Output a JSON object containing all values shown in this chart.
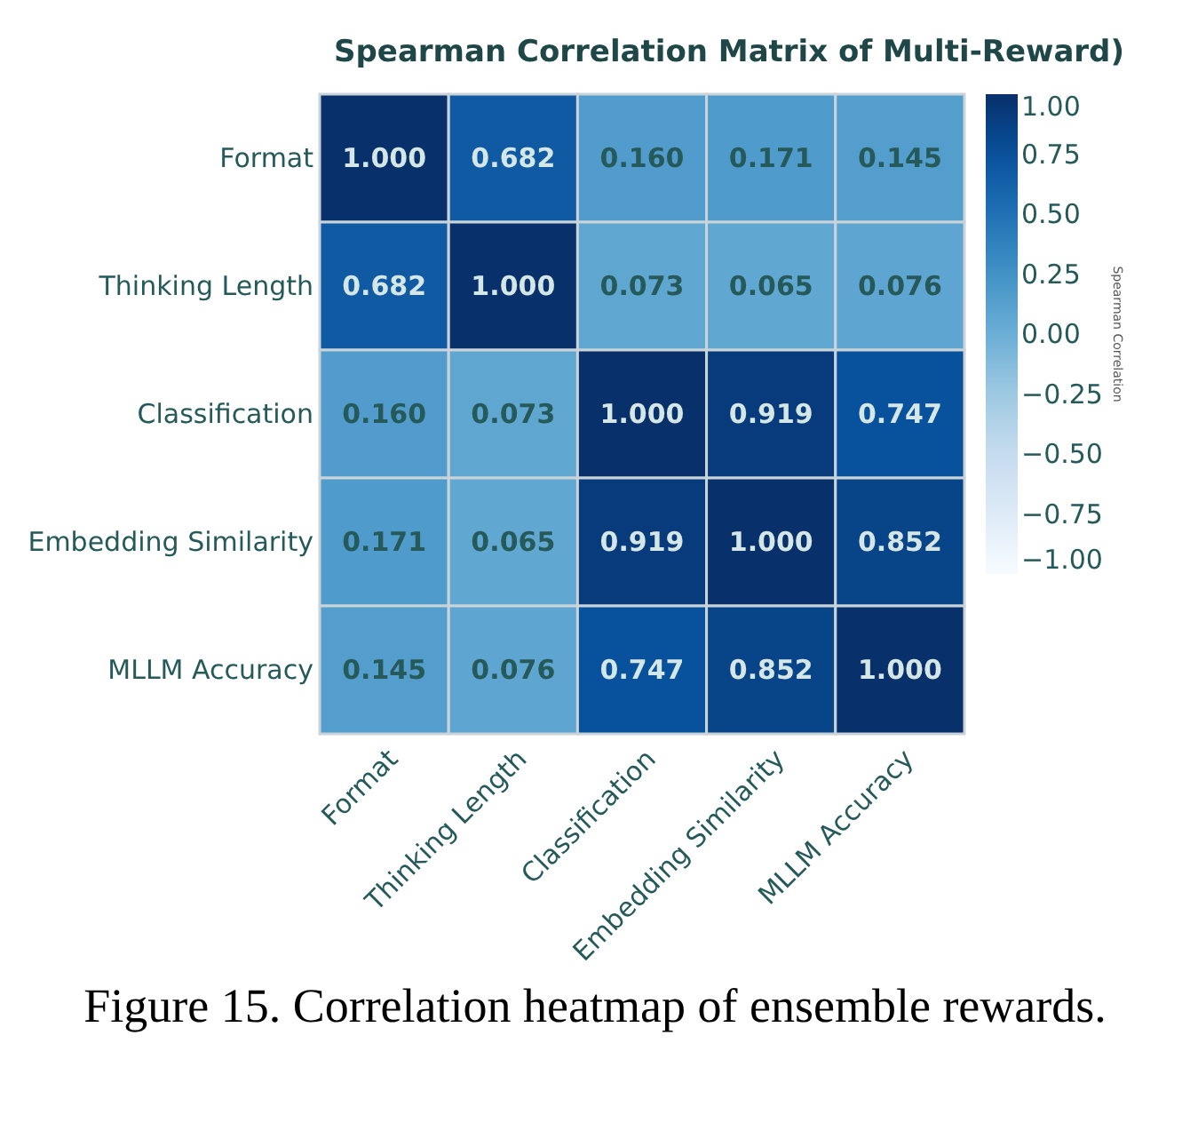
{
  "chart_data": {
    "type": "heatmap",
    "title": "Spearman Correlation Matrix of Multi-Reward)",
    "categories": [
      "Format",
      "Thinking Length",
      "Classification",
      "Embedding Similarity",
      "MLLM Accuracy"
    ],
    "y_categories": [
      "Format",
      "Thinking Length",
      "Classification",
      "Embedding Similarity",
      "MLLM Accuracy"
    ],
    "cells": [
      [
        1.0,
        0.682,
        0.16,
        0.171,
        0.145
      ],
      [
        0.682,
        1.0,
        0.073,
        0.065,
        0.076
      ],
      [
        0.16,
        0.073,
        1.0,
        0.919,
        0.747
      ],
      [
        0.171,
        0.065,
        0.919,
        1.0,
        0.852
      ],
      [
        0.145,
        0.076,
        0.747,
        0.852,
        1.0
      ]
    ],
    "cell_labels": [
      [
        "1.000",
        "0.682",
        "0.160",
        "0.171",
        "0.145"
      ],
      [
        "0.682",
        "1.000",
        "0.073",
        "0.065",
        "0.076"
      ],
      [
        "0.160",
        "0.073",
        "1.000",
        "0.919",
        "0.747"
      ],
      [
        "0.171",
        "0.065",
        "0.919",
        "1.000",
        "0.852"
      ],
      [
        "0.145",
        "0.076",
        "0.747",
        "0.852",
        "1.000"
      ]
    ],
    "clabel": "Spearman Correlation",
    "clim": [
      -1,
      1
    ],
    "cticks": [
      {
        "value": 1,
        "label": "1.00"
      },
      {
        "value": 0.75,
        "label": "0.75"
      },
      {
        "value": 0.5,
        "label": "0.50"
      },
      {
        "value": 0.25,
        "label": "0.25"
      },
      {
        "value": 0,
        "label": "0.00"
      },
      {
        "value": -0.25,
        "label": "−0.25"
      },
      {
        "value": -0.5,
        "label": "−0.50"
      },
      {
        "value": -0.75,
        "label": "−0.75"
      },
      {
        "value": -1,
        "label": "−1.00"
      }
    ],
    "annotations": [
      "Figure 15. Correlation heatmap of ensemble rewards."
    ]
  }
}
